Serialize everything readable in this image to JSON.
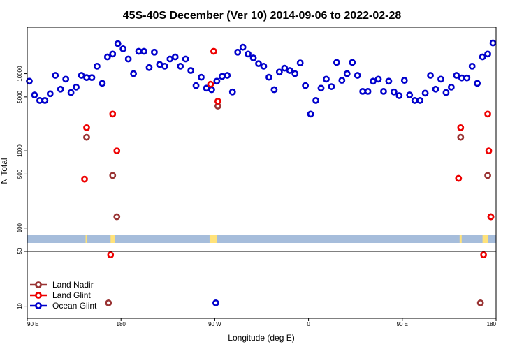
{
  "chart_data": {
    "type": "scatter",
    "title": "45S-40S December (Ver 10)   2014-09-06 to 2022-02-28",
    "xlabel": "Longitude (deg E)",
    "ylabel": "N Total",
    "x_ticks": [
      {
        "x": 90,
        "label": "90 E"
      },
      {
        "x": 180,
        "label": "180"
      },
      {
        "x": 270,
        "label": "90 W"
      },
      {
        "x": 360,
        "label": "0"
      },
      {
        "x": 450,
        "label": "90 E"
      },
      {
        "x": 540,
        "label": "180"
      }
    ],
    "xlim": [
      90,
      540
    ],
    "y_scale": "log",
    "upper_panel": {
      "ylim": [
        50,
        40000
      ],
      "y_ticks": [
        {
          "y": 50,
          "label": "50"
        },
        {
          "y": 100,
          "label": "100"
        },
        {
          "y": 500,
          "label": "500"
        },
        {
          "y": 1000,
          "label": "1000"
        },
        {
          "y": 5000,
          "label": "5000"
        },
        {
          "y": 10000,
          "label": "10000"
        }
      ]
    },
    "lower_panel": {
      "ylim": [
        7,
        50
      ],
      "y_ticks": [
        {
          "y": 10,
          "label": "10"
        },
        {
          "y": 50,
          "label": "50"
        }
      ]
    },
    "land_strip": {
      "ocean_color": "#A6BDDB",
      "land_color": "#FFE27A",
      "land_ranges": [
        [
          146,
          147
        ],
        [
          170,
          174
        ],
        [
          265,
          272
        ],
        [
          505,
          507
        ],
        [
          527,
          532
        ]
      ]
    },
    "legend": {
      "placement": "bottom-left",
      "entries": [
        {
          "label": "Land Nadir",
          "color": "#993333"
        },
        {
          "label": "Land Glint",
          "color": "#EE0000"
        },
        {
          "label": "Ocean Glint",
          "color": "#0000CC"
        }
      ]
    },
    "series": [
      {
        "name": "Land Nadir",
        "color": "#993333",
        "x": [
          147,
          172,
          176,
          273,
          506,
          532,
          535
        ],
        "y": [
          1500,
          480,
          140,
          3800,
          1500,
          480,
          140
        ],
        "lower": {
          "x": [
            168,
            525
          ],
          "y": [
            11,
            11
          ]
        }
      },
      {
        "name": "Land Glint",
        "color": "#EE0000",
        "x": [
          145,
          147,
          172,
          176,
          266,
          269,
          273,
          504,
          506,
          532,
          533,
          535
        ],
        "y": [
          430,
          2000,
          3000,
          1000,
          7300,
          19500,
          4400,
          440,
          2000,
          3000,
          1000,
          140
        ],
        "lower": {
          "x": [
            170,
            528
          ],
          "y": [
            45,
            45
          ]
        }
      },
      {
        "name": "Ocean Glint",
        "color": "#0000CC",
        "x": [
          92,
          97,
          102,
          107,
          112,
          117,
          122,
          127,
          132,
          137,
          142,
          147,
          152,
          157,
          162,
          167,
          172,
          177,
          182,
          187,
          192,
          197,
          202,
          207,
          212,
          217,
          222,
          227,
          232,
          237,
          242,
          247,
          252,
          257,
          262,
          267,
          272,
          277,
          282,
          287,
          292,
          297,
          302,
          307,
          312,
          317,
          322,
          327,
          332,
          337,
          342,
          347,
          352,
          357,
          362,
          367,
          372,
          377,
          382,
          387,
          392,
          397,
          402,
          407,
          412,
          417,
          422,
          427,
          432,
          437,
          442,
          447,
          452,
          457,
          462,
          467,
          472,
          477,
          482,
          487,
          492,
          497,
          502,
          507,
          512,
          517,
          522,
          527,
          532,
          537
        ],
        "y": [
          8000,
          5300,
          4500,
          4500,
          5500,
          9500,
          6300,
          8500,
          5700,
          6700,
          9500,
          8900,
          8900,
          12500,
          7500,
          16500,
          18000,
          24500,
          21000,
          15500,
          10000,
          19500,
          19500,
          12000,
          19000,
          13200,
          12500,
          15500,
          16500,
          12500,
          15500,
          11000,
          7000,
          9000,
          6500,
          6200,
          8000,
          9200,
          9500,
          5800,
          19000,
          22000,
          18000,
          16000,
          13500,
          12500,
          9000,
          6200,
          10500,
          11800,
          11000,
          10000,
          13800,
          7000,
          3000,
          4500,
          6500,
          8500,
          6800,
          14000,
          8200,
          10000,
          14000,
          9500,
          5900,
          5900,
          8000,
          8500,
          5900,
          8000,
          5800,
          5200,
          8200,
          5300,
          4500,
          4500,
          5600,
          9500,
          6300,
          8500,
          5700,
          6700,
          9500,
          8800,
          8800,
          12500,
          7500,
          16500,
          18000,
          25000
        ],
        "lower": {
          "x": [
            271
          ],
          "y": [
            11
          ]
        }
      }
    ]
  }
}
